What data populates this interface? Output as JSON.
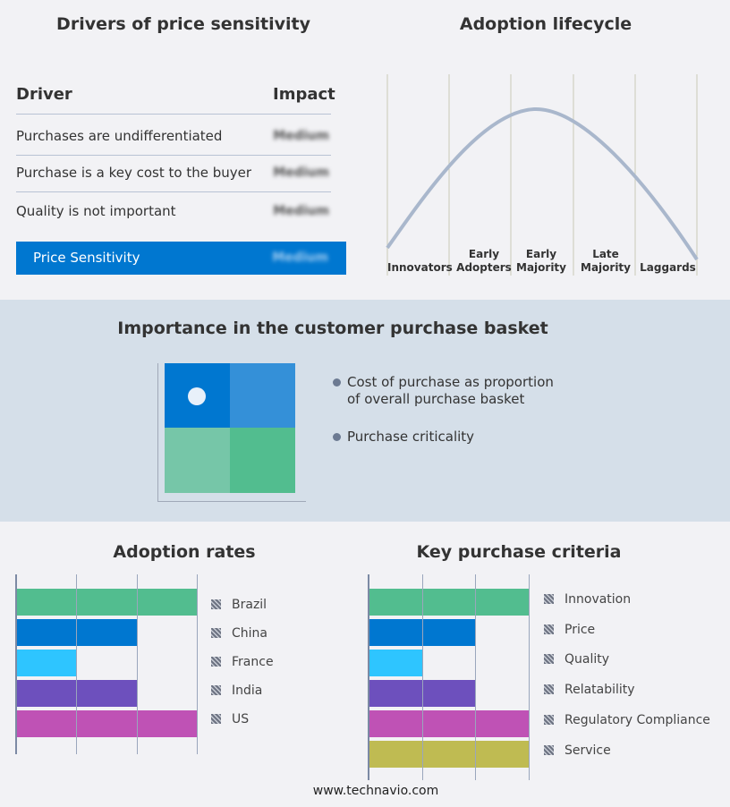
{
  "drivers": {
    "title": "Drivers of price sensitivity",
    "col_driver": "Driver",
    "col_impact": "Impact",
    "rows": [
      {
        "driver": "Purchases are undifferentiated",
        "impact": "Medium"
      },
      {
        "driver": "Purchase is a key cost to the buyer",
        "impact": "Medium"
      },
      {
        "driver": "Quality is not important",
        "impact": "Medium"
      }
    ],
    "summary": {
      "label": "Price Sensitivity",
      "impact": "Medium"
    }
  },
  "lifecycle": {
    "title": "Adoption lifecycle",
    "stages": [
      "Innovators",
      "Early Adopters",
      "Early Majority",
      "Late Majority",
      "Laggards"
    ]
  },
  "basket": {
    "title": "Importance in the customer purchase basket",
    "legend": [
      "Cost of purchase as proportion of overall purchase basket",
      "Purchase criticality"
    ],
    "colors": [
      "#0077d0",
      "#3490d8",
      "#76c6a8",
      "#52bd8f"
    ]
  },
  "chart_data": [
    {
      "type": "bar",
      "orientation": "horizontal",
      "title": "Adoption rates",
      "categories": [
        "Brazil",
        "China",
        "France",
        "India",
        "US"
      ],
      "values": [
        3,
        2,
        1,
        2,
        3
      ],
      "xlim": [
        0,
        3
      ],
      "grid": true,
      "legend": "right",
      "colors": [
        "#52bd8f",
        "#0077d0",
        "#2ec5ff",
        "#6d50bd",
        "#bf52b5"
      ]
    },
    {
      "type": "bar",
      "orientation": "horizontal",
      "title": "Key purchase criteria",
      "categories": [
        "Innovation",
        "Price",
        "Quality",
        "Relatability",
        "Regulatory Compliance",
        "Service"
      ],
      "values": [
        3,
        2,
        1,
        2,
        3,
        3
      ],
      "xlim": [
        0,
        3
      ],
      "grid": true,
      "legend": "right",
      "colors": [
        "#52bd8f",
        "#0077d0",
        "#2ec5ff",
        "#6d50bd",
        "#bf52b5",
        "#bfbb52"
      ]
    }
  ],
  "footer": "www.technavio.com"
}
